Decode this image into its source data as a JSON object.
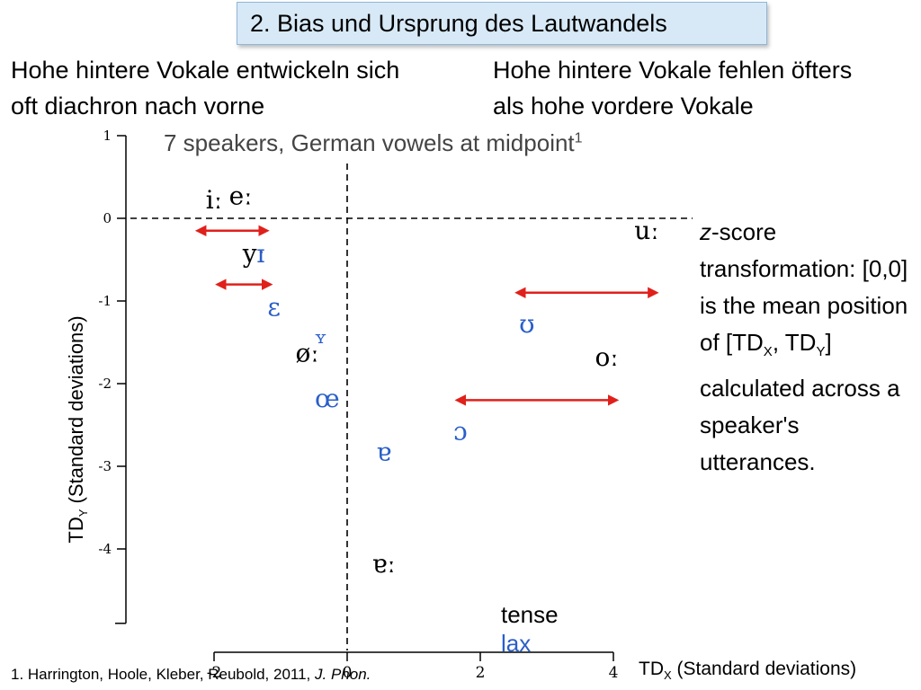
{
  "title": "2. Bias und Ursprung des Lautwandels",
  "left_heading": [
    "Hohe hintere Vokale entwickeln sich",
    "oft diachron nach vorne"
  ],
  "right_heading": [
    "Hohe hintere Vokale fehlen öfters",
    "als hohe vordere Vokale"
  ],
  "side_note": {
    "z": "z",
    "p1": "-score transformation: [0,0] is the mean position of [TD",
    "sub1": "X",
    "p2": ", TD",
    "sub2": "Y",
    "p3": "] calculated across a speaker's utterances."
  },
  "reference": {
    "authors": "1. Harrington, Hoole, Kleber, Reubold, 2011, ",
    "journal": "J. Phon."
  },
  "legend": {
    "tense": "tense",
    "lax": "lax"
  },
  "colors": {
    "tense": "#000000",
    "lax": "#2a5fc9",
    "arrow": "#e0201b",
    "title_bg": "#d7e9f6"
  },
  "chart_data": {
    "type": "scatter",
    "title": "7 speakers, German vowels at midpoint",
    "title_sup": "1",
    "xlabel_main": "TD",
    "xlabel_sub": "X",
    "xlabel_rest": " (Standard deviations)",
    "ylabel_main": "TD",
    "ylabel_sub": "Y",
    "ylabel_rest": " (Standard  deviations)",
    "xlim": [
      -2,
      4
    ],
    "ylim": [
      -4.9,
      1
    ],
    "x_ticks": [
      {
        "value": -2,
        "label": "-2"
      },
      {
        "value": 0,
        "label": "0"
      },
      {
        "value": 2,
        "label": "2"
      },
      {
        "value": 4,
        "label": "4"
      }
    ],
    "y_ticks": [
      {
        "value": 1,
        "label": "1"
      },
      {
        "value": 0,
        "label": "0"
      },
      {
        "value": -1,
        "label": "-1"
      },
      {
        "value": -2,
        "label": "-2"
      },
      {
        "value": -3,
        "label": "-3"
      },
      {
        "value": -4,
        "label": "-4"
      }
    ],
    "reference_lines": {
      "x": 0,
      "y": 0
    },
    "points": [
      {
        "label": "iː",
        "x": -2.0,
        "y": 0.2,
        "set": "tense"
      },
      {
        "label": "eː",
        "x": -1.6,
        "y": 0.25,
        "set": "tense"
      },
      {
        "label": "uː",
        "x": 4.5,
        "y": -0.17,
        "set": "tense"
      },
      {
        "label": "yː",
        "x": -1.4,
        "y": -0.45,
        "set": "tense"
      },
      {
        "label": "ɪ",
        "x": -1.3,
        "y": -0.45,
        "set": "lax"
      },
      {
        "label": "ɛ",
        "x": -1.1,
        "y": -1.1,
        "set": "lax"
      },
      {
        "label": "ʏ",
        "x": -0.4,
        "y": -1.45,
        "set": "lax"
      },
      {
        "label": "øː",
        "x": -0.6,
        "y": -1.65,
        "set": "tense"
      },
      {
        "label": "ʊ",
        "x": 2.7,
        "y": -1.3,
        "set": "lax"
      },
      {
        "label": "oː",
        "x": 3.9,
        "y": -1.7,
        "set": "tense"
      },
      {
        "label": "œ",
        "x": -0.3,
        "y": -2.2,
        "set": "lax"
      },
      {
        "label": "ɔ",
        "x": 1.7,
        "y": -2.6,
        "set": "lax"
      },
      {
        "label": "ɐ",
        "x": 0.55,
        "y": -2.85,
        "set": "lax"
      },
      {
        "label": "ɐː",
        "x": 0.55,
        "y": -4.2,
        "set": "tense"
      }
    ],
    "arrows": [
      {
        "x1": -1.25,
        "x2": -2.2,
        "y": -0.15
      },
      {
        "x1": -1.2,
        "x2": -1.9,
        "y": -0.8
      },
      {
        "x1": 2.6,
        "x2": 4.6,
        "y": -0.9
      },
      {
        "x1": 1.7,
        "x2": 4.0,
        "y": -2.2
      }
    ]
  }
}
